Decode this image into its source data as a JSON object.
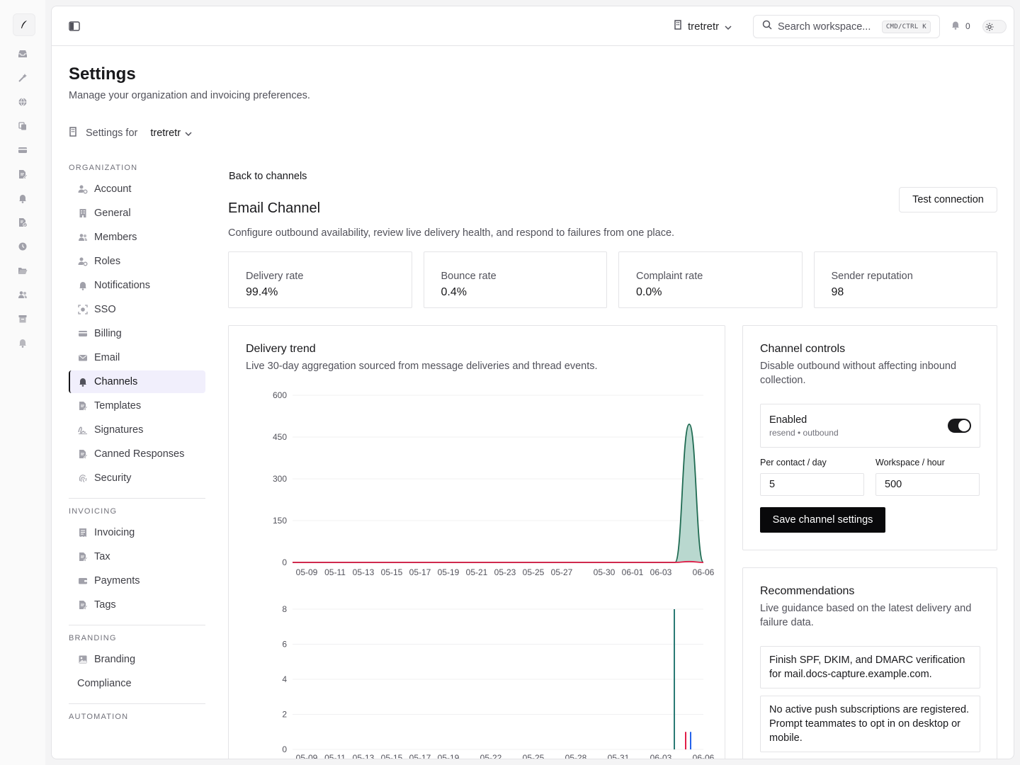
{
  "rail": {
    "icons": [
      "feather-logo-icon",
      "inbox-icon",
      "magic-wand-icon",
      "globe-icon",
      "copy-icon",
      "credit-card-icon",
      "file-edit-icon",
      "bell-icon",
      "file-check-icon",
      "clock-icon",
      "folder-open-icon",
      "users-icon",
      "archive-icon",
      "bell-outline-icon"
    ]
  },
  "topbar": {
    "workspace": "tretretr",
    "search_placeholder": "Search workspace...",
    "shortcut": "CMD/CTRL K",
    "notification_count": "0"
  },
  "page": {
    "title": "Settings",
    "subtitle": "Manage your organization and invoicing preferences.",
    "settings_for_label": "Settings for",
    "settings_for_org": "tretretr"
  },
  "nav": {
    "organization_label": "ORGANIZATION",
    "organization": [
      {
        "label": "Account",
        "icon": "user-cog-icon"
      },
      {
        "label": "General",
        "icon": "building-icon"
      },
      {
        "label": "Members",
        "icon": "users-icon"
      },
      {
        "label": "Roles",
        "icon": "user-cog-icon"
      },
      {
        "label": "Notifications",
        "icon": "bell-icon"
      },
      {
        "label": "SSO",
        "icon": "scan-icon"
      },
      {
        "label": "Billing",
        "icon": "credit-card-icon"
      },
      {
        "label": "Email",
        "icon": "mail-icon"
      },
      {
        "label": "Channels",
        "icon": "bell-icon"
      },
      {
        "label": "Templates",
        "icon": "file-edit-icon"
      },
      {
        "label": "Signatures",
        "icon": "signature-icon"
      },
      {
        "label": "Canned Responses",
        "icon": "file-edit-icon"
      },
      {
        "label": "Security",
        "icon": "fingerprint-icon"
      }
    ],
    "invoicing_label": "INVOICING",
    "invoicing": [
      {
        "label": "Invoicing",
        "icon": "receipt-icon"
      },
      {
        "label": "Tax",
        "icon": "file-edit-icon"
      },
      {
        "label": "Payments",
        "icon": "wallet-icon"
      },
      {
        "label": "Tags",
        "icon": "file-edit-icon"
      }
    ],
    "branding_label": "BRANDING",
    "branding": [
      {
        "label": "Branding",
        "icon": "image-icon"
      },
      {
        "label": "Compliance",
        "icon": ""
      }
    ],
    "automation_label": "AUTOMATION"
  },
  "channel": {
    "back_label": "Back to channels",
    "title": "Email Channel",
    "subtitle": "Configure outbound availability, review live delivery health, and respond to failures from one place.",
    "test_button": "Test connection",
    "stats": [
      {
        "label": "Delivery rate",
        "value": "99.4%"
      },
      {
        "label": "Bounce rate",
        "value": "0.4%"
      },
      {
        "label": "Complaint rate",
        "value": "0.0%"
      },
      {
        "label": "Sender reputation",
        "value": "98"
      }
    ]
  },
  "trend": {
    "title": "Delivery trend",
    "subtitle": "Live 30-day aggregation sourced from message deliveries and thread events."
  },
  "chart_data": [
    {
      "type": "area",
      "ylim": [
        0,
        600
      ],
      "yticks": [
        0,
        150,
        300,
        450,
        600
      ],
      "xticks": [
        "05-09",
        "05-11",
        "05-13",
        "05-15",
        "05-17",
        "05-19",
        "05-21",
        "05-23",
        "05-25",
        "05-27",
        "05-30",
        "06-01",
        "06-03",
        "06-06"
      ],
      "x": [
        "05-08",
        "05-09",
        "05-10",
        "05-11",
        "05-12",
        "05-13",
        "05-14",
        "05-15",
        "05-16",
        "05-17",
        "05-18",
        "05-19",
        "05-20",
        "05-21",
        "05-22",
        "05-23",
        "05-24",
        "05-25",
        "05-26",
        "05-27",
        "05-28",
        "05-29",
        "05-30",
        "05-31",
        "06-01",
        "06-02",
        "06-03",
        "06-04",
        "06-05",
        "06-06"
      ],
      "series": [
        {
          "values": [
            0,
            0,
            0,
            0,
            0,
            0,
            0,
            0,
            0,
            0,
            0,
            0,
            0,
            0,
            0,
            0,
            0,
            0,
            0,
            0,
            0,
            0,
            0,
            0,
            0,
            0,
            0,
            0,
            496,
            0
          ],
          "color": "#1f6b52"
        },
        {
          "values": [
            0,
            0,
            0,
            0,
            0,
            0,
            0,
            0,
            0,
            0,
            0,
            0,
            0,
            0,
            0,
            0,
            0,
            0,
            0,
            0,
            0,
            0,
            0,
            0,
            0,
            0,
            0,
            0,
            3,
            0
          ],
          "color": "#e11d48"
        }
      ]
    },
    {
      "type": "bar",
      "ylim": [
        0,
        8
      ],
      "yticks": [
        0,
        2,
        4,
        6,
        8
      ],
      "xticks": [
        "05-09",
        "05-11",
        "05-13",
        "05-15",
        "05-17",
        "05-19",
        "05-22",
        "05-25",
        "05-28",
        "05-31",
        "06-03",
        "06-06"
      ],
      "bars": [
        {
          "x": "06-04",
          "value": 8,
          "color": "#2a7a74"
        },
        {
          "x": "06-05",
          "value": 1,
          "color": "#e11d48"
        },
        {
          "x": "06-05",
          "value": 1,
          "color": "#2563eb"
        }
      ]
    }
  ],
  "controls": {
    "title": "Channel controls",
    "subtitle": "Disable outbound without affecting inbound collection.",
    "enabled_label": "Enabled",
    "enabled_meta": "resend • outbound",
    "per_contact_label": "Per contact / day",
    "per_contact_value": "5",
    "workspace_label": "Workspace / hour",
    "workspace_value": "500",
    "save_button": "Save channel settings"
  },
  "recommendations": {
    "title": "Recommendations",
    "subtitle": "Live guidance based on the latest delivery and failure data.",
    "items": [
      "Finish SPF, DKIM, and DMARC verification for mail.docs-capture.example.com.",
      "No active push subscriptions are registered. Prompt teammates to opt in on desktop or mobile."
    ]
  }
}
